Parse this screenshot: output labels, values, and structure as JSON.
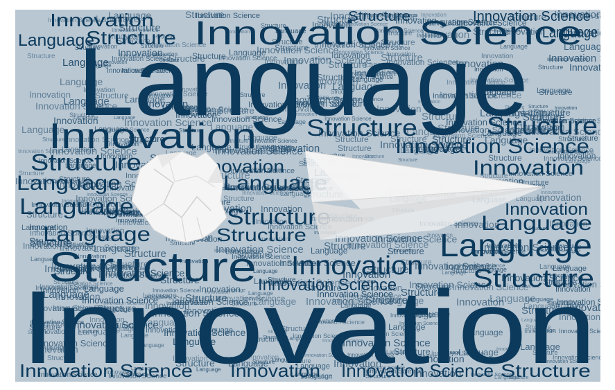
{
  "words": [
    "Language",
    "Innovation",
    "Structure",
    "Innovation Science"
  ],
  "colors": {
    "background": "#b9c7d2",
    "text_primary": "#0c3a5c",
    "paper": "#f3f3f3"
  },
  "objects": [
    "crumpled-paper-ball",
    "paper-airplane"
  ]
}
